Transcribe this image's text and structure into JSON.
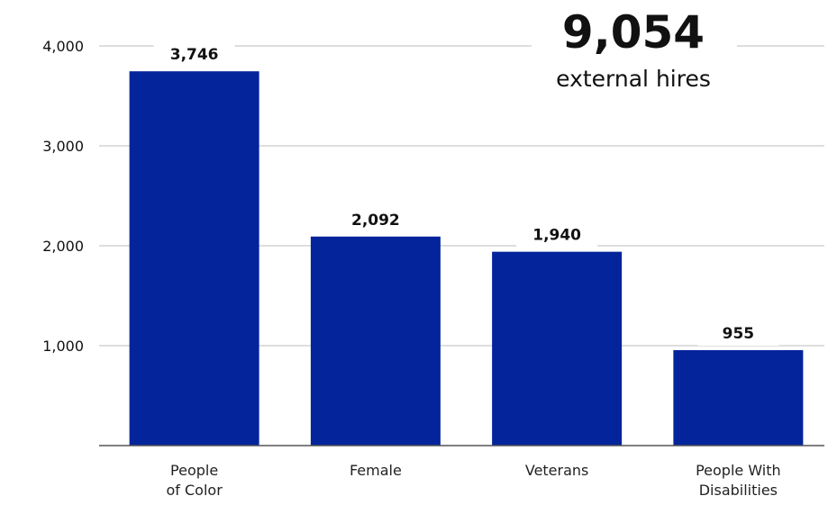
{
  "callout": {
    "value": "9,054",
    "label": "external hires"
  },
  "chart_data": {
    "type": "bar",
    "categories": [
      [
        "People",
        "of Color"
      ],
      [
        "Female"
      ],
      [
        "Veterans"
      ],
      [
        "People With",
        "Disabilities"
      ]
    ],
    "values": [
      3746,
      2092,
      1940,
      955
    ],
    "value_labels": [
      "3,746",
      "2,092",
      "1,940",
      "955"
    ],
    "yticks": [
      1000,
      2000,
      3000,
      4000
    ],
    "ytick_labels": [
      "1,000",
      "2,000",
      "3,000",
      "4,000"
    ],
    "ylim": [
      0,
      4000
    ],
    "grid": true,
    "bar_color": "#03249a",
    "grid_color": "#bdbdbd",
    "baseline_color": "#555555"
  }
}
